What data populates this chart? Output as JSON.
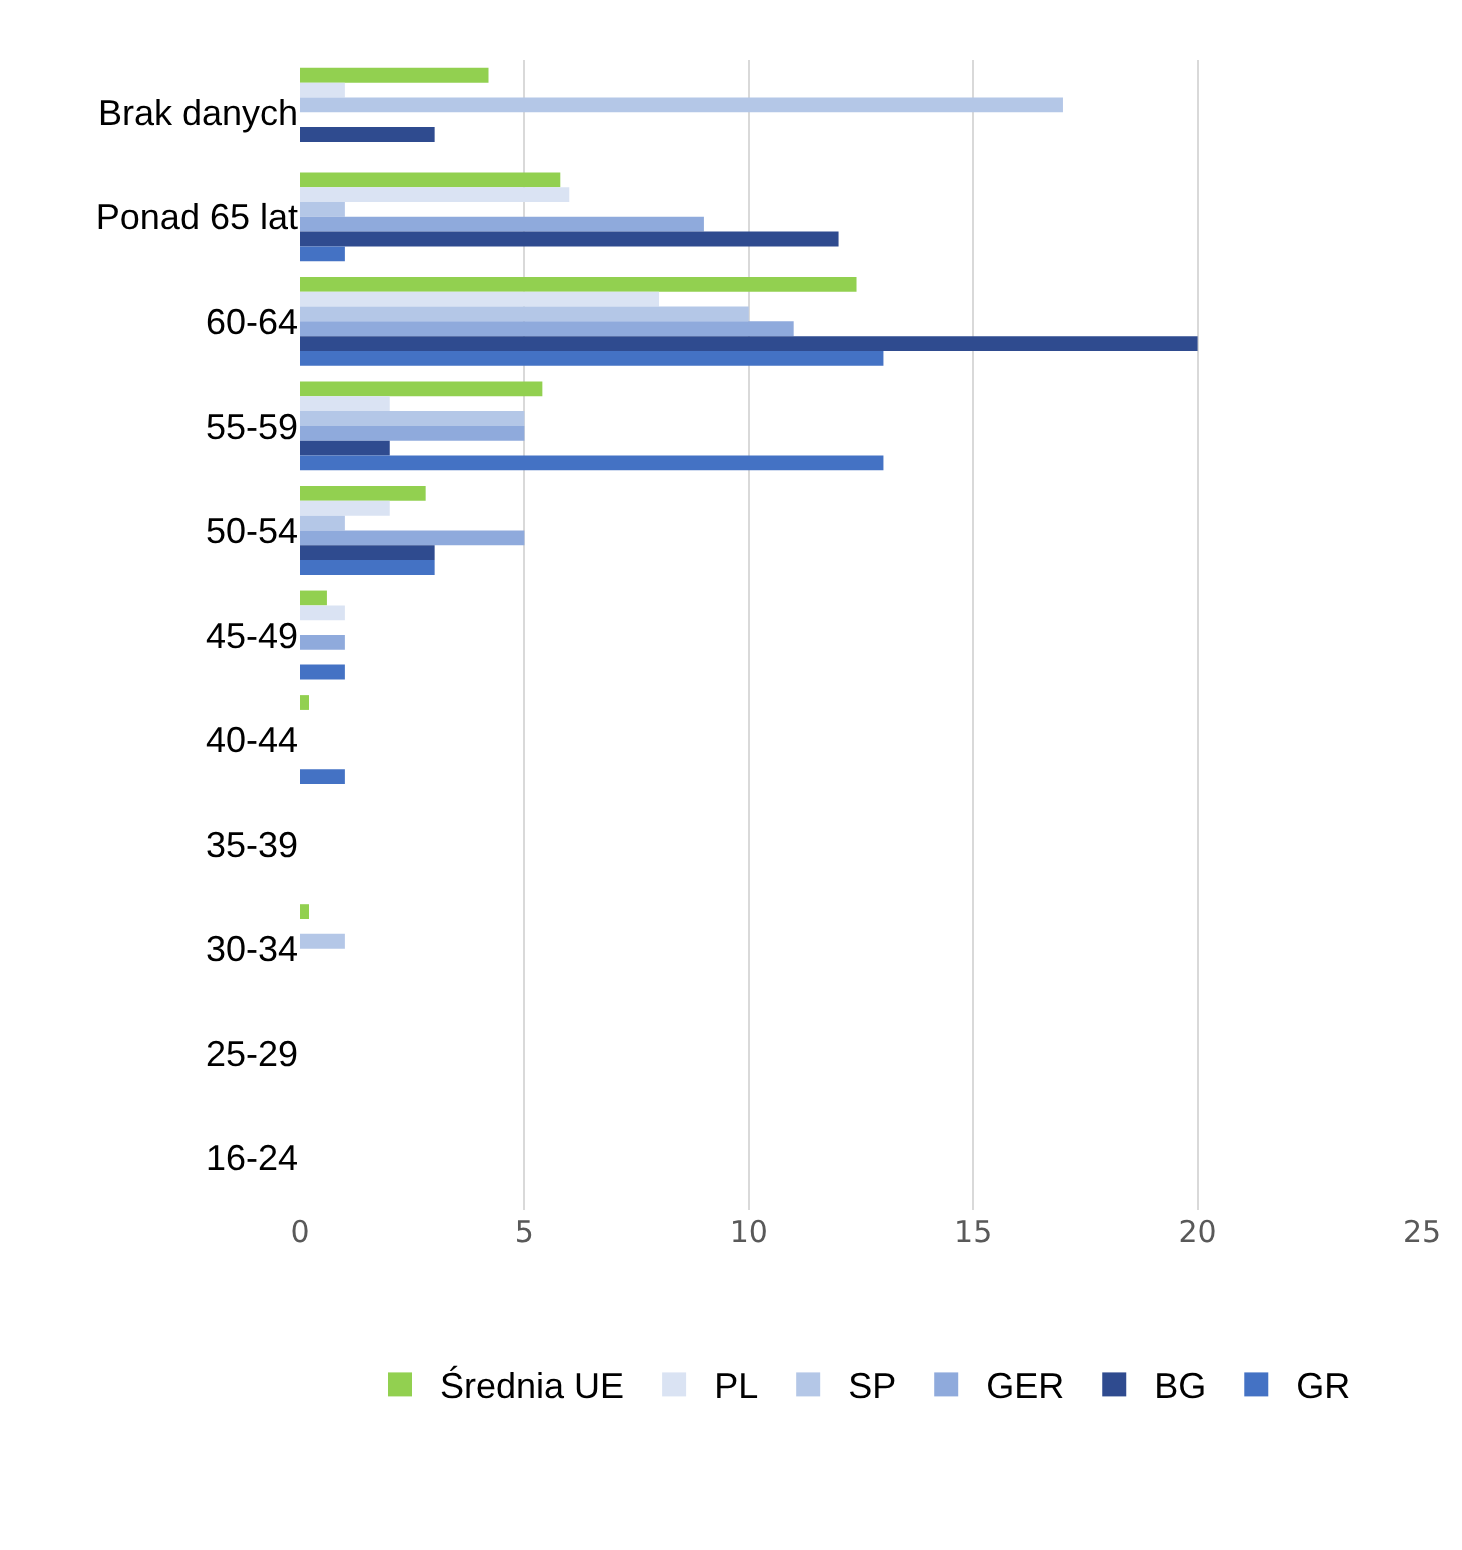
{
  "chart_data": {
    "type": "bar",
    "orientation": "horizontal",
    "categories": [
      "Brak danych",
      "Ponad 65 lat",
      "60-64",
      "55-59",
      "50-54",
      "45-49",
      "40-44",
      "35-39",
      "30-34",
      "25-29",
      "16-24"
    ],
    "series": [
      {
        "name": "Średnia UE",
        "color": "#92d050",
        "values": [
          4.2,
          5.8,
          12.4,
          5.4,
          2.8,
          0.6,
          0.2,
          null,
          0.2,
          null,
          null
        ]
      },
      {
        "name": "PL",
        "color": "#dae3f3",
        "values": [
          1,
          6,
          8,
          2,
          2,
          1,
          null,
          null,
          null,
          null,
          null
        ]
      },
      {
        "name": "SP",
        "color": "#b4c7e7",
        "values": [
          17,
          1,
          10,
          5,
          1,
          null,
          null,
          null,
          1,
          null,
          null
        ]
      },
      {
        "name": "GER",
        "color": "#8faadc",
        "values": [
          null,
          9,
          11,
          5,
          5,
          1,
          null,
          null,
          null,
          null,
          null
        ]
      },
      {
        "name": "BG",
        "color": "#2f4b8f",
        "values": [
          3,
          12,
          20,
          2,
          3,
          null,
          null,
          null,
          null,
          null,
          null
        ]
      },
      {
        "name": "GR",
        "color": "#4472c4",
        "values": [
          null,
          1,
          13,
          13,
          3,
          1,
          1,
          null,
          null,
          null,
          null
        ]
      }
    ],
    "xlim": [
      0,
      25
    ],
    "xticks": [
      0,
      5,
      10,
      15,
      20,
      25
    ],
    "grid": "x",
    "legend": "bottom"
  }
}
